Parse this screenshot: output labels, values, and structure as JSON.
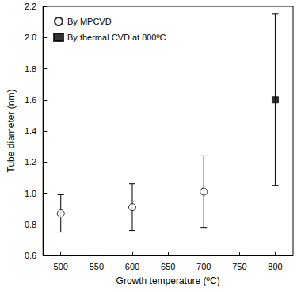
{
  "chart_data": {
    "type": "scatter",
    "x_label": "Growth temperature (ºC)",
    "y_label": "Tube diameter (nm)",
    "xlim": [
      475,
      825
    ],
    "xticks": [
      500,
      550,
      600,
      650,
      700,
      750,
      800
    ],
    "ylim": [
      0.6,
      2.2
    ],
    "yticks": [
      0.6,
      0.8,
      {
        "value": 1,
        "label": "1.0"
      },
      1.2,
      1.4,
      1.6,
      1.8,
      {
        "value": 2,
        "label": "2.0"
      },
      2.2
    ],
    "grid": false,
    "legend": "upper left",
    "series": [
      {
        "name": "By MPCVD",
        "color": "#000000",
        "marker": "open_circle",
        "x": [
          500,
          600,
          700
        ],
        "values": [
          0.87,
          0.91,
          1.01
        ],
        "error_bars": [
          [
            0.75,
            0.99
          ],
          [
            0.76,
            1.06
          ],
          [
            0.78,
            1.24
          ]
        ]
      },
      {
        "name": "By thermal CVD at 800ºC",
        "color": "#000000",
        "marker": "square",
        "x": [
          800
        ],
        "values": [
          1.6
        ],
        "error_bars": [
          [
            1.05,
            2.15
          ]
        ]
      }
    ]
  }
}
